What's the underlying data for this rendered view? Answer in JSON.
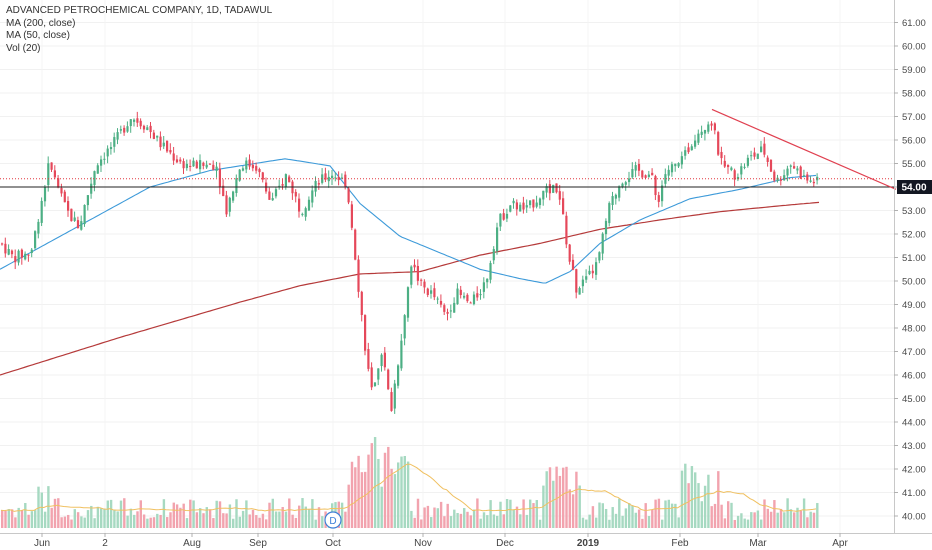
{
  "legend": {
    "title": "ADVANCED PETROCHEMICAL COMPANY, 1D, TADAWUL",
    "ma200": "MA (200, close)",
    "ma50": "MA (50, close)",
    "vol": "Vol (20)"
  },
  "colors": {
    "up": "#4caf84",
    "down": "#e5485a",
    "up_vol": "#a6d9c1",
    "down_vol": "#f2a3ae",
    "ma50": "#3d9ad9",
    "ma200": "#b53a3a",
    "trendline": "#e04050",
    "support": "#222222",
    "last_dotted": "#e2363f",
    "vol_ma": "#f0c060"
  },
  "price_label": "54.00",
  "event_marker": "D",
  "chart_data": {
    "type": "candlestick",
    "y_axis": {
      "ticks": [
        "61.00",
        "60.00",
        "59.00",
        "58.00",
        "57.00",
        "56.00",
        "55.00",
        "54.00",
        "53.00",
        "52.00",
        "51.00",
        "50.00",
        "49.00",
        "48.00",
        "47.00",
        "46.00",
        "45.00",
        "44.00",
        "43.00",
        "42.00",
        "41.00",
        "40.00"
      ],
      "range": [
        39.6,
        61.5
      ]
    },
    "x_axis": {
      "ticks": [
        "Jun",
        "2",
        "Aug",
        "Sep",
        "Oct",
        "Nov",
        "Dec",
        "2019",
        "Feb",
        "Mar",
        "Apr"
      ]
    },
    "support_level": 54.0,
    "last_price": 54.35,
    "price_path": [
      [
        0,
        51.6
      ],
      [
        12,
        51.0
      ],
      [
        30,
        51.2
      ],
      [
        48,
        55.0
      ],
      [
        65,
        53.0
      ],
      [
        78,
        52.3
      ],
      [
        95,
        55.0
      ],
      [
        112,
        55.8
      ],
      [
        130,
        57.0
      ],
      [
        145,
        56.6
      ],
      [
        160,
        55.8
      ],
      [
        180,
        55.0
      ],
      [
        200,
        54.9
      ],
      [
        215,
        55.0
      ],
      [
        225,
        53.0
      ],
      [
        240,
        55.0
      ],
      [
        255,
        54.9
      ],
      [
        270,
        53.3
      ],
      [
        285,
        54.5
      ],
      [
        300,
        53.0
      ],
      [
        315,
        54.1
      ],
      [
        330,
        54.6
      ],
      [
        345,
        54.2
      ],
      [
        352,
        52.0
      ],
      [
        358,
        49.5
      ],
      [
        366,
        46.5
      ],
      [
        372,
        44.9
      ],
      [
        380,
        47.2
      ],
      [
        390,
        44.5
      ],
      [
        400,
        47.5
      ],
      [
        410,
        50.8
      ],
      [
        420,
        49.8
      ],
      [
        432,
        49.4
      ],
      [
        445,
        48.5
      ],
      [
        455,
        49.5
      ],
      [
        470,
        49.0
      ],
      [
        485,
        50.0
      ],
      [
        497,
        52.5
      ],
      [
        510,
        53.3
      ],
      [
        525,
        53.0
      ],
      [
        540,
        53.7
      ],
      [
        557,
        54.0
      ],
      [
        568,
        51.0
      ],
      [
        575,
        49.7
      ],
      [
        585,
        50.0
      ],
      [
        597,
        50.8
      ],
      [
        607,
        53.0
      ],
      [
        620,
        54.3
      ],
      [
        635,
        54.7
      ],
      [
        650,
        54.5
      ],
      [
        656,
        53.3
      ],
      [
        665,
        54.7
      ],
      [
        680,
        55.0
      ],
      [
        695,
        56.3
      ],
      [
        710,
        56.9
      ],
      [
        720,
        55.0
      ],
      [
        735,
        54.5
      ],
      [
        748,
        55.2
      ],
      [
        762,
        55.6
      ],
      [
        775,
        54.2
      ],
      [
        790,
        55.0
      ],
      [
        805,
        54.3
      ],
      [
        818,
        54.2
      ]
    ],
    "ma50": [
      [
        0,
        50.5
      ],
      [
        90,
        52.6
      ],
      [
        150,
        54.0
      ],
      [
        210,
        54.7
      ],
      [
        285,
        55.2
      ],
      [
        330,
        54.9
      ],
      [
        360,
        53.3
      ],
      [
        400,
        51.9
      ],
      [
        440,
        51.2
      ],
      [
        480,
        50.5
      ],
      [
        520,
        50.1
      ],
      [
        545,
        49.9
      ],
      [
        570,
        50.4
      ],
      [
        600,
        51.6
      ],
      [
        640,
        52.6
      ],
      [
        690,
        53.5
      ],
      [
        740,
        53.9
      ],
      [
        790,
        54.4
      ],
      [
        818,
        54.5
      ]
    ],
    "ma200": [
      [
        0,
        46.0
      ],
      [
        120,
        47.6
      ],
      [
        240,
        49.1
      ],
      [
        300,
        49.8
      ],
      [
        360,
        50.3
      ],
      [
        420,
        50.4
      ],
      [
        480,
        51.1
      ],
      [
        540,
        51.6
      ],
      [
        600,
        52.2
      ],
      [
        660,
        52.6
      ],
      [
        720,
        52.95
      ],
      [
        780,
        53.2
      ],
      [
        820,
        53.35
      ]
    ],
    "trendline": [
      [
        712,
        57.3
      ],
      [
        896,
        53.9
      ]
    ]
  }
}
